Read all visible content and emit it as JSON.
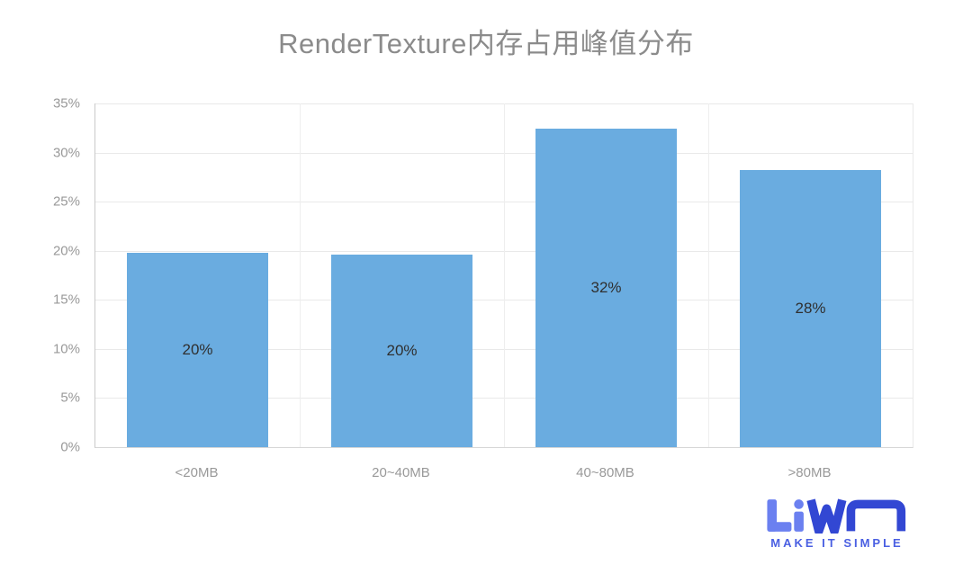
{
  "page": {
    "background": "#ffffff"
  },
  "chart_data": {
    "type": "bar",
    "title": "RenderTexture内存占用峰值分布",
    "categories": [
      "<20MB",
      "20~40MB",
      "40~80MB",
      ">80MB"
    ],
    "values": [
      20,
      20,
      32,
      28
    ],
    "bar_labels": [
      "20%",
      "20%",
      "32%",
      "28%"
    ],
    "display_heights_pct": [
      19.8,
      19.6,
      32.4,
      28.2
    ],
    "y_ticks": [
      "0%",
      "5%",
      "10%",
      "15%",
      "20%",
      "25%",
      "30%",
      "35%"
    ],
    "ylim": [
      0,
      35
    ],
    "xlabel": "",
    "ylabel": "",
    "grid": "horizontal and vertical light gray gridlines",
    "legend": "none",
    "colors": {
      "bar": "#6aace0",
      "bar_label": "#2f2f2f",
      "axis_text": "#999999",
      "title": "#8b8b8b",
      "gridline": "#e9e9e9",
      "gridline_vertical": "#eeeeee",
      "axis_line": "#c9c9c9"
    }
  },
  "logo": {
    "text": "LiWA",
    "tagline": "MAKE IT SIMPLE",
    "colors": {
      "light": "#6b80f0",
      "dark": "#3247d3",
      "tagline": "#4a5fe2"
    }
  }
}
